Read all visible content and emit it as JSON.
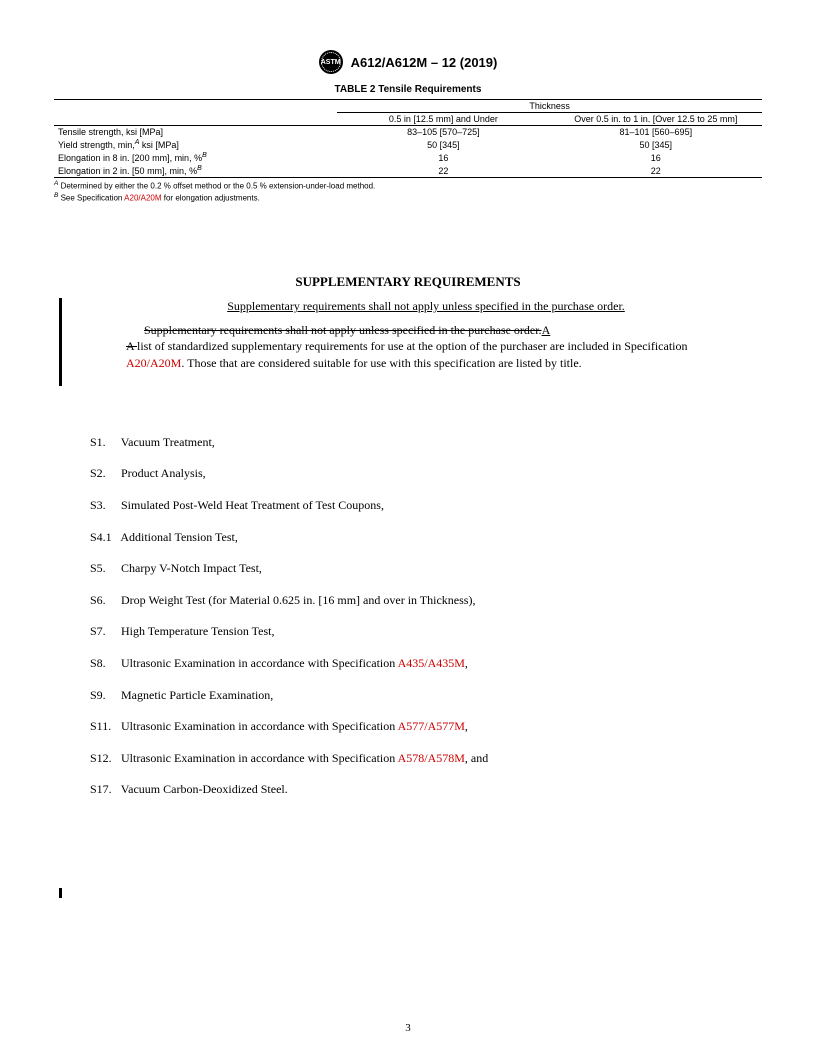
{
  "header": {
    "logo_text": "ASTM",
    "designation": "A612/A612M – 12 (2019)"
  },
  "table": {
    "title": "TABLE 2 Tensile Requirements",
    "group_header": "Thickness",
    "col_headers": [
      "0.5 in [12.5 mm] and Under",
      "Over 0.5 in. to 1 in. [Over 12.5 to 25 mm]"
    ],
    "rows": [
      {
        "label": "Tensile strength, ksi [MPa]",
        "sup": "",
        "v1": "83–105 [570–725]",
        "v2": "81–101 [560–695]"
      },
      {
        "label": "Yield strength, min,",
        "sup": "A",
        "label_tail": " ksi [MPa]",
        "v1": "50 [345]",
        "v2": "50 [345]"
      },
      {
        "label": "Elongation in 8 in. [200 mm], min, %",
        "sup": "B",
        "label_tail": "",
        "v1": "16",
        "v2": "16"
      },
      {
        "label": "Elongation in 2 in. [50 mm], min, %",
        "sup": "B",
        "label_tail": "",
        "v1": "22",
        "v2": "22"
      }
    ],
    "footnotes": {
      "a": " Determined by either the 0.2 % offset method or the 0.5 % extension-under-load method.",
      "b_pre": " See Specification ",
      "b_link": "A20/A20M",
      "b_post": " for elongation adjustments."
    }
  },
  "supplementary": {
    "heading": "SUPPLEMENTARY REQUIREMENTS",
    "underline_sentence": "Supplementary requirements shall not apply unless specified in the purchase order.",
    "strike_sentence": "Supplementary requirements shall not apply unless specified in the purchase order.",
    "para_a": "A",
    "strike_a": "A ",
    "body_pre": "list of standardized supplementary requirements for use at the option of the purchaser are included in Specification ",
    "body_link": "A20/A20M",
    "body_post": ". Those that are considered suitable for use with this specification are listed by title."
  },
  "s_items": [
    {
      "num": "S1.",
      "text": "Vacuum Treatment,"
    },
    {
      "num": "S2.",
      "text": "Product Analysis,"
    },
    {
      "num": "S3.",
      "text": "Simulated Post-Weld Heat Treatment of Test Coupons,"
    },
    {
      "num": "S4.1",
      "text": "Additional Tension Test,"
    },
    {
      "num": "S5.",
      "text": "Charpy V-Notch Impact Test,"
    },
    {
      "num": "S6.",
      "text": "Drop Weight Test (for Material 0.625 in. [16 mm] and over in Thickness),"
    },
    {
      "num": "S7.",
      "text": "High Temperature Tension Test,"
    },
    {
      "num": "S8.",
      "text_pre": "Ultrasonic Examination in accordance with Specification ",
      "link": "A435/A435M",
      "text_post": ","
    },
    {
      "num": "S9.",
      "text": "Magnetic Particle Examination,"
    },
    {
      "num": "S11.",
      "text_pre": "Ultrasonic Examination in accordance with Specification ",
      "link": "A577/A577M",
      "text_post": ","
    },
    {
      "num": "S12.",
      "text_pre": "Ultrasonic Examination in accordance with Specification ",
      "link": "A578/A578M",
      "text_post": ", and"
    },
    {
      "num": "S17.",
      "text": "Vacuum Carbon-Deoxidized Steel."
    }
  ],
  "page_number": "3"
}
